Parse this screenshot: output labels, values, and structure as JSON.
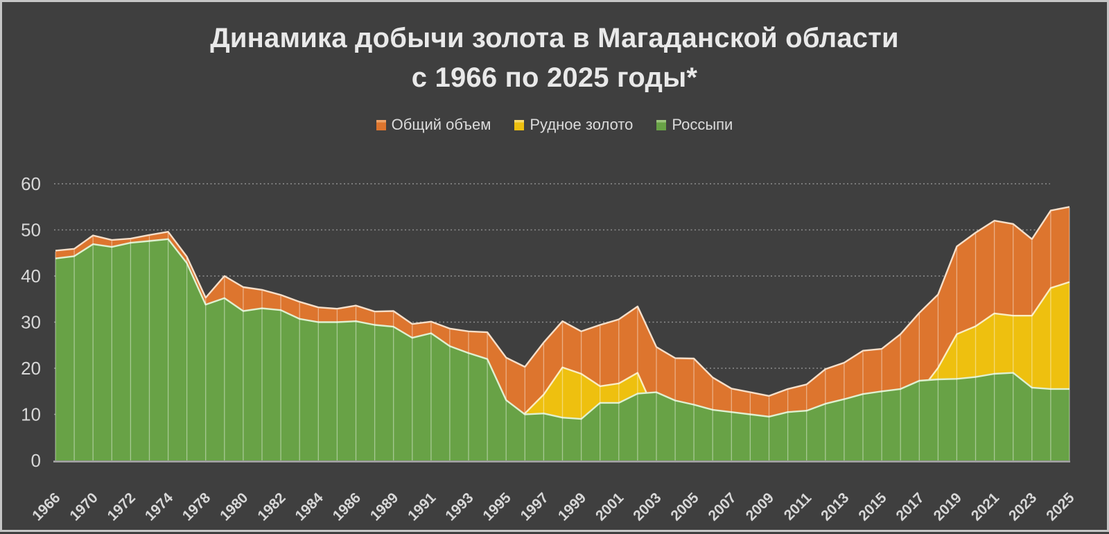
{
  "title": {
    "line1": "Динамика добычи золота в Магаданской области",
    "line2": "с 1966 по 2025 годы*"
  },
  "legend": [
    {
      "label": "Общий объем",
      "color": "#dd752e",
      "edge": "#eda368"
    },
    {
      "label": "Рудное золото",
      "color": "#eec00f",
      "edge": "#f6da6d"
    },
    {
      "label": "Россыпи",
      "color": "#68a246",
      "edge": "#9cc47e"
    }
  ],
  "colors": {
    "background": "#3f3f3f",
    "border": "#c6c6c6",
    "gridline": "#909090",
    "axis_line": "#acacac",
    "tick_text": "#d8d8d8",
    "title_text": "#e9e9e9",
    "separator_line": "rgba(255,255,255,0.42)",
    "toplines": [
      "#f6dfc9",
      "#faedc2",
      "#dff0d0"
    ]
  },
  "y_axis": {
    "ticks": [
      0,
      10,
      20,
      30,
      40,
      50,
      60
    ],
    "max": 60
  },
  "chart_data": {
    "type": "area",
    "title": "Динамика добычи золота в Магаданской области с 1966 по 2025 годы*",
    "xlabel": "",
    "ylabel": "",
    "ylim": [
      0,
      60
    ],
    "grid": "horizontal-dotted",
    "legend_position": "top",
    "x": [
      1966,
      1968,
      1970,
      1971,
      1972,
      1973,
      1974,
      1976,
      1978,
      1979,
      1980,
      1981,
      1982,
      1983,
      1984,
      1985,
      1986,
      1988,
      1989,
      1990,
      1991,
      1992,
      1993,
      1994,
      1995,
      1996,
      1997,
      1998,
      1999,
      2000,
      2001,
      2002,
      2003,
      2004,
      2005,
      2006,
      2007,
      2008,
      2009,
      2010,
      2011,
      2012,
      2013,
      2014,
      2015,
      2016,
      2017,
      2018,
      2019,
      2020,
      2021,
      2022,
      2023,
      2024,
      2025
    ],
    "x_labels": [
      "1966",
      "1970",
      "1972",
      "1974",
      "1978",
      "1980",
      "1982",
      "1984",
      "1986",
      "1989",
      "1991",
      "1993",
      "1995",
      "1997",
      "1999",
      "2001",
      "2003",
      "2005",
      "2007",
      "2009",
      "2011",
      "2013",
      "2015",
      "2017",
      "2019",
      "2021",
      "2023",
      "2025"
    ],
    "x_label_step": 2,
    "series": [
      {
        "name": "Общий объем",
        "color": "#dd752e",
        "values": [
          45.5,
          45.9,
          48.8,
          47.8,
          48.1,
          48.9,
          49.6,
          44.2,
          35.3,
          40.0,
          37.6,
          37.0,
          35.9,
          34.4,
          33.2,
          32.9,
          33.6,
          32.3,
          32.4,
          29.6,
          30.1,
          28.6,
          28.0,
          27.8,
          22.3,
          20.3,
          25.6,
          30.2,
          28.0,
          29.4,
          30.6,
          33.4,
          24.6,
          22.2,
          22.1,
          18.0,
          15.6,
          14.8,
          14.0,
          15.5,
          16.5,
          19.8,
          21.2,
          23.8,
          24.2,
          27.4,
          32.0,
          36.0,
          46.4,
          49.4,
          52.0,
          51.3,
          48.0,
          54.2,
          55.0
        ]
      },
      {
        "name": "Рудное золото",
        "color": "#eec00f",
        "values": [
          1.7,
          1.6,
          1.9,
          1.5,
          0.9,
          1.3,
          1.6,
          1.4,
          1.5,
          4.8,
          5.2,
          4.0,
          3.3,
          3.7,
          3.2,
          2.9,
          3.4,
          2.9,
          3.4,
          3.0,
          2.5,
          3.8,
          4.7,
          5.8,
          9.2,
          10.2,
          14.3,
          20.2,
          18.8,
          16.1,
          16.7,
          19.0,
          9.8,
          9.2,
          10.0,
          7.0,
          5.1,
          4.8,
          4.5,
          5.0,
          5.7,
          7.5,
          7.9,
          9.4,
          9.2,
          11.9,
          14.7,
          20.1,
          27.4,
          29.1,
          31.9,
          31.4,
          31.4,
          37.4,
          38.7
        ]
      },
      {
        "name": "Россыпи",
        "color": "#68a246",
        "values": [
          43.8,
          44.3,
          46.9,
          46.3,
          47.2,
          47.6,
          48.0,
          42.8,
          33.8,
          35.2,
          32.4,
          33.0,
          32.6,
          30.7,
          30.0,
          30.0,
          30.2,
          29.4,
          29.0,
          26.6,
          27.6,
          24.8,
          23.3,
          22.0,
          13.1,
          10.0,
          10.2,
          9.3,
          9.0,
          12.5,
          12.5,
          14.5,
          14.8,
          13.0,
          12.1,
          11.0,
          10.5,
          10.0,
          9.5,
          10.5,
          10.8,
          12.3,
          13.3,
          14.4,
          15.0,
          15.5,
          17.3,
          17.6,
          17.7,
          18.1,
          18.8,
          19.0,
          15.8,
          15.5,
          15.5
        ]
      }
    ]
  }
}
